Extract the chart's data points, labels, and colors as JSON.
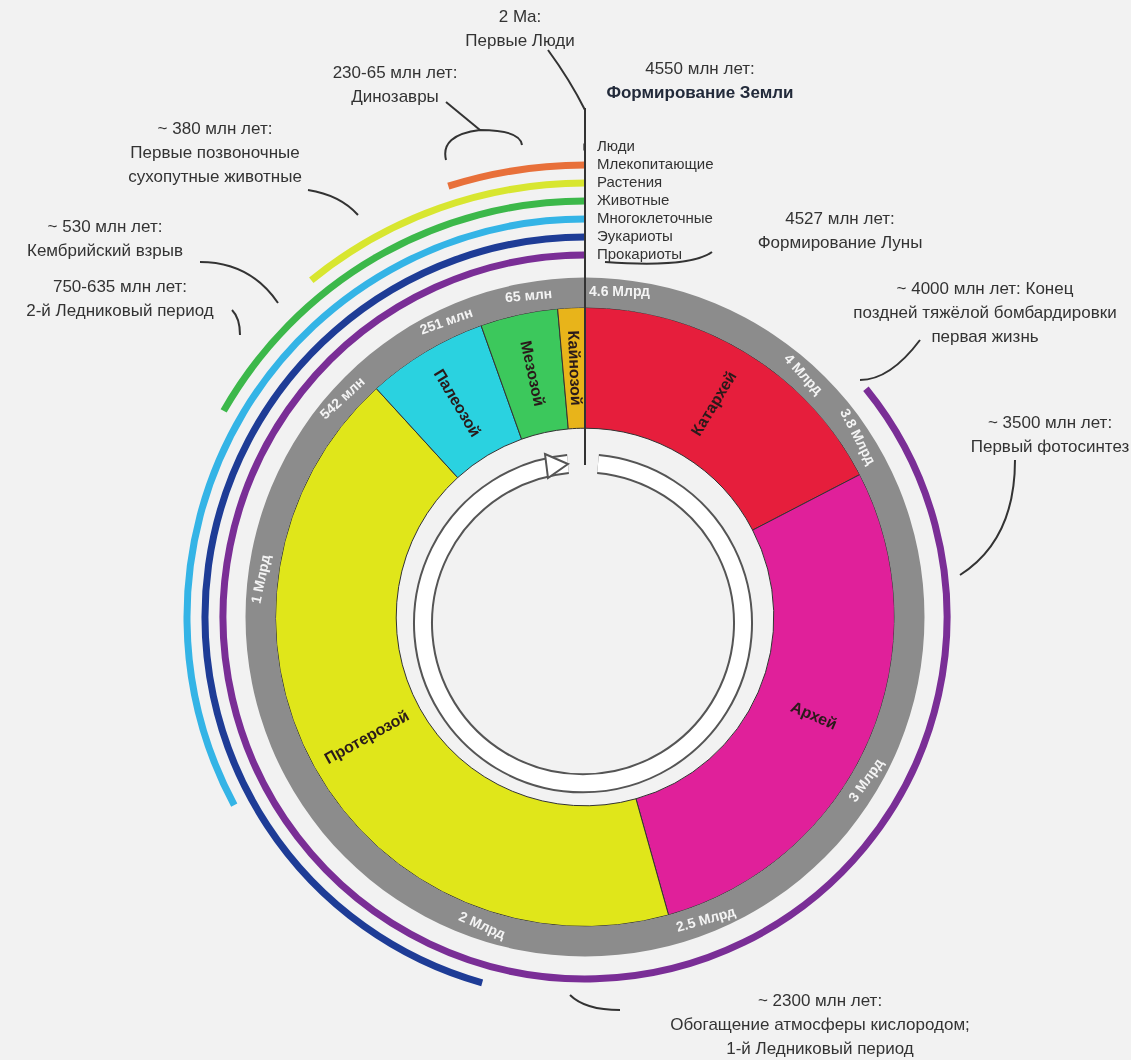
{
  "chart_data": {
    "type": "donut",
    "categories": [
      "Катархей",
      "Архей",
      "Протерозой",
      "Палеозой",
      "Мезозой",
      "Кайнозой"
    ],
    "values": [
      17.39,
      28.26,
      42.57,
      6.33,
      4.04,
      1.41
    ],
    "colors": [
      "#e61e3c",
      "#e0209a",
      "#e0e61a",
      "#2ad2e0",
      "#3cc85c",
      "#e8b41a"
    ],
    "annotations": [
      "2 Ma:\nПервые Люди",
      "4550 млн лет:\nФормирование Земли",
      "230-65 млн лет:\nДинозавры",
      "~ 380 млн лет:\nПервые позвоночные\nсухопутные животные",
      "~ 530 млн лет:\nКембрийский взрыв",
      "750-635 млн лет:\n2-й Ледниковый период",
      "4527 млн лет:\nФормирование Луны",
      "~ 4000 млн лет: Конец\nпоздней тяжёлой бомбардировки\nпервая жизнь",
      "~ 3500 млн лет:\nПервый фотосинтез",
      "~ 2300 млн лет:\nОбогащение атмосферы кислородом;\n1-й Ледниковый период",
      "4.6 Млрд",
      "4 Млрд",
      "3.8 Млрд",
      "3 Млрд",
      "2.5 Млрд",
      "2 Млрд",
      "1 Млрд",
      "542 млн",
      "251 млн",
      "65 млн",
      "Люди",
      "Млекопитающие",
      "Растения",
      "Животные",
      "Многоклеточные",
      "Эукариоты",
      "Прокариоты"
    ]
  }
}
